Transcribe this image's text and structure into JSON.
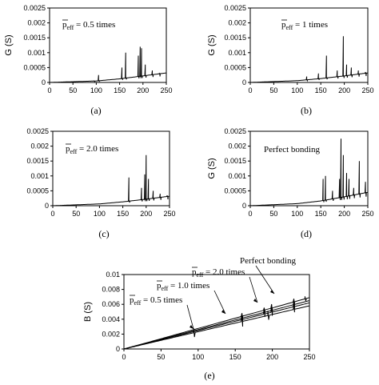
{
  "chart_data": [
    {
      "type": "line",
      "caption": "(a)",
      "ylabel": "G (S)",
      "xlim": [
        0,
        250
      ],
      "ylim": [
        0,
        0.0025
      ],
      "xticks": [
        "0",
        "50",
        "100",
        "150",
        "200",
        "250"
      ],
      "yticks": [
        "0",
        "0.0005",
        "0.001",
        "0.0015",
        "0.002",
        "0.0025"
      ],
      "annotation": {
        "symbol": "p",
        "subscript": "eff",
        "text": " = 0.5 times"
      },
      "series": [
        {
          "baseline": [
            [
              0,
              0
            ],
            [
              100,
              5e-05
            ],
            [
              150,
              0.00012
            ],
            [
              200,
              0.00022
            ],
            [
              250,
              0.00032
            ]
          ],
          "peaks": [
            [
              95,
              5e-05
            ],
            [
              105,
              0.00025
            ],
            [
              155,
              0.0005
            ],
            [
              163,
              0.001
            ],
            [
              190,
              0.0009
            ],
            [
              194,
              0.0012
            ],
            [
              197,
              0.00115
            ],
            [
              205,
              0.0006
            ],
            [
              220,
              0.0004
            ],
            [
              235,
              0.0003
            ]
          ]
        }
      ]
    },
    {
      "type": "line",
      "caption": "(b)",
      "ylabel": "G (S)",
      "xlim": [
        0,
        250
      ],
      "ylim": [
        0,
        0.0025
      ],
      "xticks": [
        "0",
        "50",
        "100",
        "150",
        "200",
        "250"
      ],
      "yticks": [
        "0",
        "0.0005",
        "0.001",
        "0.0015",
        "0.002",
        "0.0025"
      ],
      "annotation": {
        "symbol": "p",
        "subscript": "eff",
        "text": " = 1 times"
      },
      "series": [
        {
          "baseline": [
            [
              0,
              0
            ],
            [
              100,
              6e-05
            ],
            [
              150,
              0.00013
            ],
            [
              200,
              0.00022
            ],
            [
              250,
              0.00032
            ]
          ],
          "peaks": [
            [
              120,
              0.0002
            ],
            [
              145,
              0.0003
            ],
            [
              162,
              0.0009
            ],
            [
              185,
              0.0004
            ],
            [
              198,
              0.00155
            ],
            [
              205,
              0.0006
            ],
            [
              215,
              0.0005
            ],
            [
              230,
              0.0004
            ],
            [
              245,
              0.00035
            ]
          ]
        }
      ]
    },
    {
      "type": "line",
      "caption": "(c)",
      "ylabel": "",
      "xlim": [
        0,
        250
      ],
      "ylim": [
        0,
        0.0025
      ],
      "xticks": [
        "0",
        "50",
        "100",
        "150",
        "200",
        "250"
      ],
      "yticks": [
        "0",
        "0.0005",
        "0.001",
        "0.0015",
        "0.002",
        "0.0025"
      ],
      "annotation": {
        "symbol": "p",
        "subscript": "eff",
        "text": " = 2.0  times"
      },
      "series": [
        {
          "baseline": [
            [
              0,
              0
            ],
            [
              100,
              6e-05
            ],
            [
              150,
              0.00013
            ],
            [
              200,
              0.00022
            ],
            [
              250,
              0.00032
            ]
          ],
          "peaks": [
            [
              163,
              0.00095
            ],
            [
              190,
              0.0006
            ],
            [
              197,
              0.00105
            ],
            [
              200,
              0.0017
            ],
            [
              205,
              0.0009
            ],
            [
              215,
              0.0005
            ],
            [
              230,
              0.0004
            ],
            [
              245,
              0.00035
            ]
          ]
        }
      ]
    },
    {
      "type": "line",
      "caption": "(d)",
      "ylabel": "G (S)",
      "xlim": [
        0,
        250
      ],
      "ylim": [
        0,
        0.0025
      ],
      "xticks": [
        "0",
        "50",
        "100",
        "150",
        "200",
        "250"
      ],
      "yticks": [
        "0",
        "0.0005",
        "0.001",
        "0.0015",
        "0.002",
        "0.0025"
      ],
      "annotation": {
        "text": "Perfect bonding"
      },
      "series": [
        {
          "baseline": [
            [
              0,
              0
            ],
            [
              100,
              7e-05
            ],
            [
              150,
              0.00016
            ],
            [
              200,
              0.0003
            ],
            [
              250,
              0.00045
            ]
          ],
          "peaks": [
            [
              155,
              0.0009
            ],
            [
              160,
              0.001
            ],
            [
              175,
              0.0005
            ],
            [
              190,
              0.0009
            ],
            [
              193,
              0.00225
            ],
            [
              198,
              0.0017
            ],
            [
              205,
              0.0011
            ],
            [
              210,
              0.0009
            ],
            [
              220,
              0.0006
            ],
            [
              232,
              0.0015
            ],
            [
              245,
              0.0008
            ]
          ]
        }
      ]
    },
    {
      "type": "line",
      "caption": "(e)",
      "ylabel": "B (S)",
      "xlim": [
        0,
        250
      ],
      "ylim": [
        0,
        0.01
      ],
      "xticks": [
        "0",
        "50",
        "100",
        "150",
        "200",
        "250"
      ],
      "yticks": [
        "0",
        "0.002",
        "0.004",
        "0.006",
        "0.008",
        "0.01"
      ],
      "annotations": [
        {
          "symbol": "p",
          "subscript": "eff",
          "text": " = 0.5  times"
        },
        {
          "symbol": "p",
          "subscript": "eff",
          "text": " = 1.0 times"
        },
        {
          "symbol": "p",
          "subscript": "eff",
          "text": " = 2.0 times"
        },
        {
          "text": "Perfect bonding"
        }
      ],
      "series": [
        {
          "end": 0.0069,
          "slope_points": [
            [
              0,
              0
            ],
            [
              250,
              0.0069
            ]
          ],
          "jumps": [
            [
              160,
              0.0004
            ],
            [
              190,
              0.0003
            ],
            [
              200,
              0.0005
            ],
            [
              230,
              0.0004
            ],
            [
              245,
              0.0003
            ]
          ]
        },
        {
          "end": 0.0065,
          "slope_points": [
            [
              0,
              0
            ],
            [
              250,
              0.0065
            ]
          ],
          "jumps": [
            [
              160,
              0.0005
            ],
            [
              190,
              0.0003
            ],
            [
              200,
              0.0005
            ],
            [
              230,
              0.0004
            ]
          ]
        },
        {
          "end": 0.0062,
          "slope_points": [
            [
              0,
              0
            ],
            [
              250,
              0.0062
            ]
          ],
          "jumps": [
            [
              160,
              0.0005
            ],
            [
              190,
              0.0004
            ],
            [
              200,
              0.0005
            ],
            [
              230,
              0.0004
            ]
          ]
        },
        {
          "end": 0.0058,
          "slope_points": [
            [
              0,
              0
            ],
            [
              250,
              0.0058
            ]
          ],
          "jumps": [
            [
              95,
              0.0006
            ],
            [
              160,
              0.0007
            ],
            [
              195,
              0.0006
            ],
            [
              230,
              0.0004
            ]
          ]
        }
      ]
    }
  ]
}
